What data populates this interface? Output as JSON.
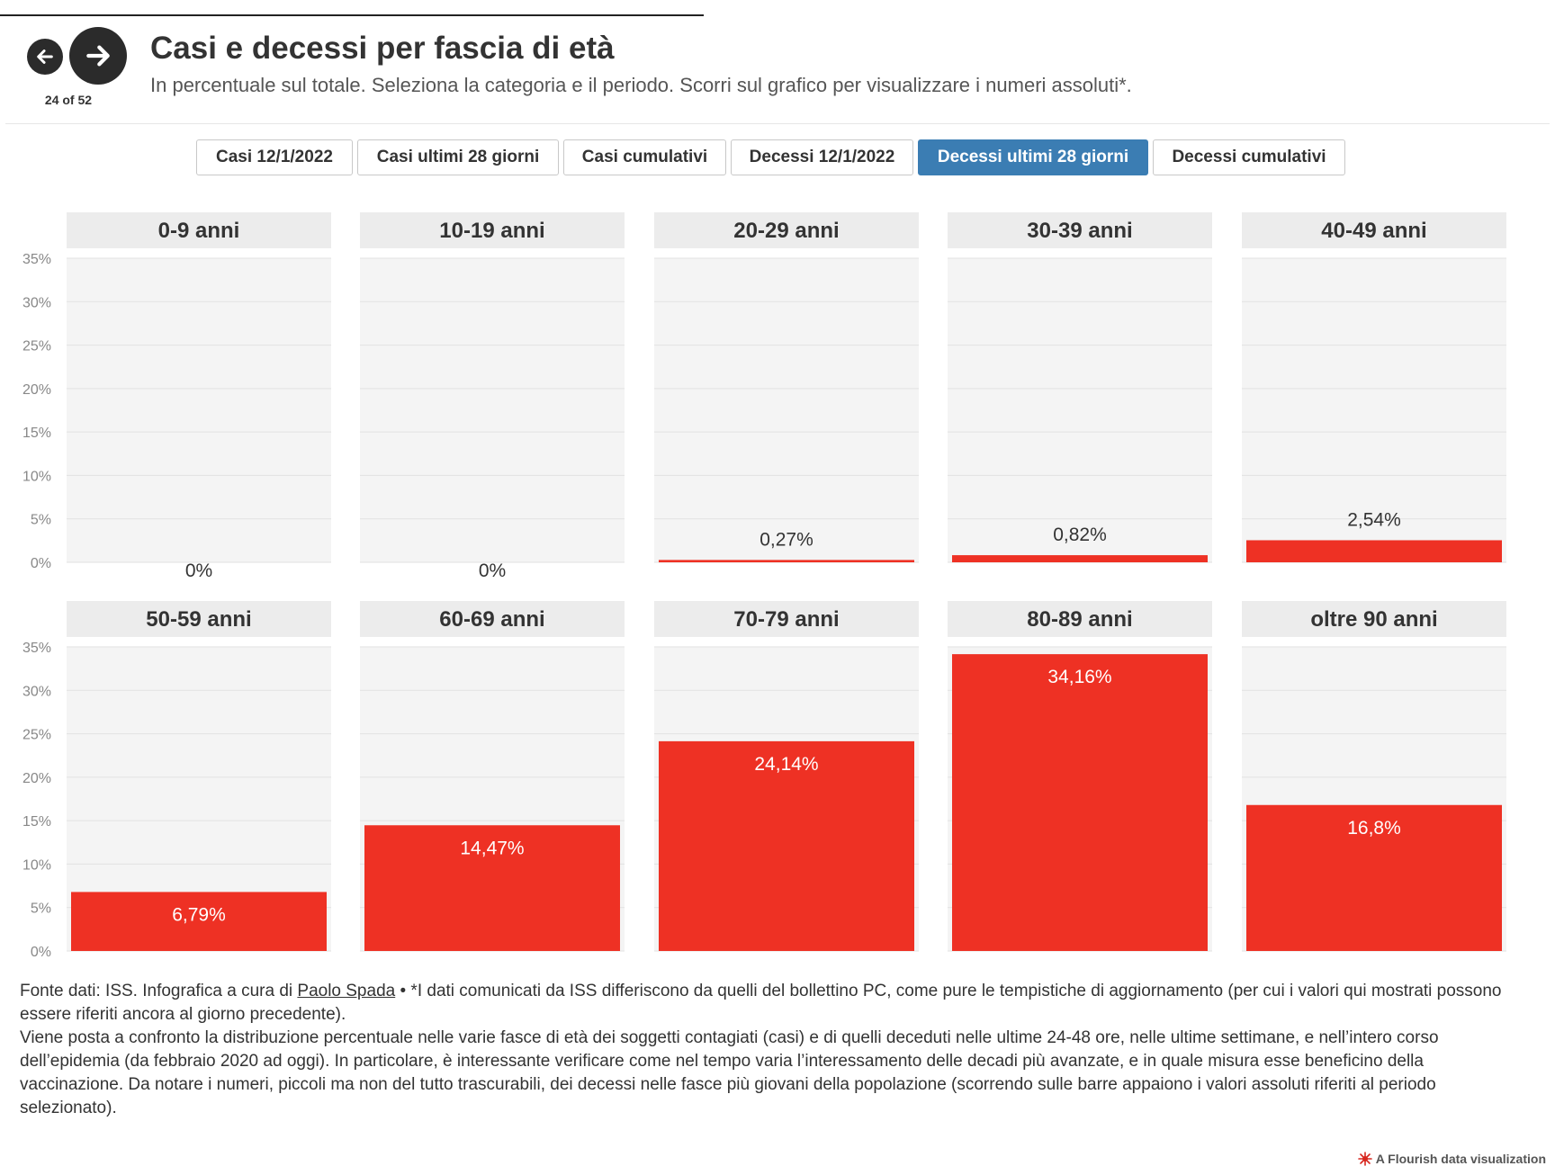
{
  "header": {
    "title": "Casi e decessi per fascia di età",
    "subtitle": "In percentuale sul totale. Seleziona la categoria e il periodo. Scorri sul grafico per visualizzare i numeri assoluti*.",
    "nav": {
      "prev_icon": "arrow-left-icon",
      "next_icon": "arrow-right-icon",
      "counter": "24 of 52"
    }
  },
  "tabs": [
    {
      "label": "Casi 12/1/2022",
      "active": false
    },
    {
      "label": "Casi ultimi 28 giorni",
      "active": false
    },
    {
      "label": "Casi cumulativi",
      "active": false
    },
    {
      "label": "Decessi 12/1/2022",
      "active": false
    },
    {
      "label": "Decessi ultimi 28 giorni",
      "active": true
    },
    {
      "label": "Decessi cumulativi",
      "active": false
    }
  ],
  "colors": {
    "bar": "#ee3124",
    "active_tab": "#3b7db3",
    "panel_bg": "#f4f4f4",
    "panel_header_bg": "#ececec"
  },
  "chart_data": {
    "type": "bar",
    "y_unit": "%",
    "ylim": [
      0,
      35
    ],
    "y_ticks": [
      "0%",
      "5%",
      "10%",
      "15%",
      "20%",
      "25%",
      "30%",
      "35%"
    ],
    "grid": true,
    "categories": [
      "0-9 anni",
      "10-19 anni",
      "20-29 anni",
      "30-39 anni",
      "40-49 anni",
      "50-59 anni",
      "60-69 anni",
      "70-79 anni",
      "80-89 anni",
      "oltre 90 anni"
    ],
    "values": [
      0,
      0,
      0.27,
      0.82,
      2.54,
      6.79,
      14.47,
      24.14,
      34.16,
      16.8
    ],
    "value_labels": [
      "0%",
      "0%",
      "0,27%",
      "0,82%",
      "2,54%",
      "6,79%",
      "14,47%",
      "24,14%",
      "34,16%",
      "16,8%"
    ]
  },
  "footer": {
    "source_prefix": "Fonte dati: ISS. Infografica a cura di ",
    "author": "Paolo Spada",
    "source_suffix": " • *I dati comunicati da ISS differiscono da quelli del bollettino PC, come pure le tempistiche di aggiornamento (per cui i valori qui mostrati possono essere riferiti ancora al giorno precedente).",
    "description": "Viene posta a confronto la distribuzione percentuale nelle varie fasce di età dei soggetti contagiati (casi) e di quelli deceduti nelle ultime 24-48 ore, nelle ultime settimane, e nell’intero corso dell’epidemia (da febbraio 2020 ad oggi). In particolare, è interessante verificare come nel tempo varia l’interessamento delle decadi più avanzate, e in quale misura esse beneficino della vaccinazione. Da notare i numeri, piccoli ma non del tutto trascurabili, dei decessi nelle fasce più giovani della popolazione (scorrendo sulle barre appaiono i valori assoluti riferiti al periodo selezionato)."
  },
  "credit": {
    "label": "A Flourish data visualization",
    "icon": "flourish-logo-icon"
  }
}
